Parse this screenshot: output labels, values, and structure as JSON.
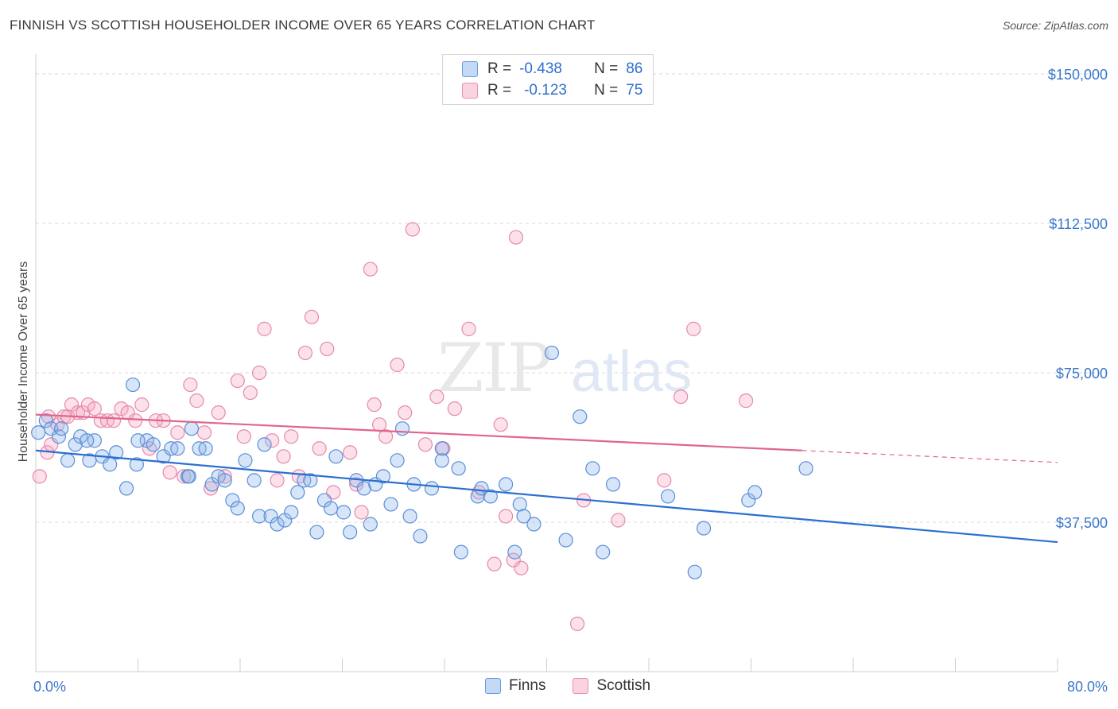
{
  "header": {
    "title": "FINNISH VS SCOTTISH HOUSEHOLDER INCOME OVER 65 YEARS CORRELATION CHART",
    "source": "Source: ZipAtlas.com"
  },
  "legend": {
    "rows": [
      {
        "r_label": "R =",
        "r_value": "-0.438",
        "n_label": "N =",
        "n_value": "86",
        "color": "#a9c8f0",
        "border": "#6a9be0"
      },
      {
        "r_label": "R =",
        "r_value": "-0.123",
        "n_label": "N =",
        "n_value": "75",
        "color": "#f7c3d4",
        "border": "#e890ad"
      }
    ]
  },
  "bottom_legend": {
    "finns": "Finns",
    "scottish": "Scottish"
  },
  "colors": {
    "finns_fill": "rgba(140,180,235,0.35)",
    "finns_stroke": "#5b8fd6",
    "finns_line": "#2a6fd1",
    "scottish_fill": "rgba(245,170,195,0.35)",
    "scottish_stroke": "#e58aab",
    "scottish_line": "#e0648e",
    "axis_text": "#3a78c9"
  },
  "chart_data": {
    "type": "scatter",
    "title": "FINNISH VS SCOTTISH HOUSEHOLDER INCOME OVER 65 YEARS CORRELATION CHART",
    "xlabel": "",
    "ylabel": "Householder Income Over 65 years",
    "xlim": [
      0,
      80
    ],
    "ylim": [
      0,
      153000
    ],
    "x_tick_labels": [
      "0.0%",
      "80.0%"
    ],
    "y_ticks": [
      37500,
      75000,
      112500,
      150000
    ],
    "y_tick_labels": [
      "$37,500",
      "$75,000",
      "$112,500",
      "$150,000"
    ],
    "grid": true,
    "legend_position": "top-center",
    "watermark": "ZIPatlas",
    "series": [
      {
        "name": "Finns",
        "r": -0.438,
        "n": 86,
        "trend": {
          "x": [
            0,
            80
          ],
          "y": [
            55500,
            32500
          ]
        },
        "points": [
          [
            0.2,
            60000
          ],
          [
            0.8,
            63000
          ],
          [
            1.2,
            61000
          ],
          [
            1.8,
            59000
          ],
          [
            2.5,
            53000
          ],
          [
            3.1,
            57000
          ],
          [
            3.5,
            59000
          ],
          [
            4.2,
            53000
          ],
          [
            4.6,
            58000
          ],
          [
            5.2,
            54000
          ],
          [
            5.8,
            52000
          ],
          [
            6.3,
            55000
          ],
          [
            7.1,
            46000
          ],
          [
            7.6,
            72000
          ],
          [
            7.9,
            52000
          ],
          [
            8.7,
            58000
          ],
          [
            9.2,
            57000
          ],
          [
            10.0,
            54000
          ],
          [
            10.6,
            56000
          ],
          [
            11.1,
            56000
          ],
          [
            11.9,
            49000
          ],
          [
            12.2,
            61000
          ],
          [
            12.8,
            56000
          ],
          [
            13.3,
            56000
          ],
          [
            13.8,
            47000
          ],
          [
            14.3,
            49000
          ],
          [
            14.8,
            48000
          ],
          [
            15.4,
            43000
          ],
          [
            15.8,
            41000
          ],
          [
            16.4,
            53000
          ],
          [
            17.1,
            48000
          ],
          [
            17.5,
            39000
          ],
          [
            17.9,
            57000
          ],
          [
            18.4,
            39000
          ],
          [
            18.9,
            37000
          ],
          [
            19.5,
            38000
          ],
          [
            20.0,
            40000
          ],
          [
            20.5,
            45000
          ],
          [
            21.0,
            48000
          ],
          [
            21.5,
            48000
          ],
          [
            22.0,
            35000
          ],
          [
            22.6,
            43000
          ],
          [
            23.1,
            41000
          ],
          [
            23.5,
            54000
          ],
          [
            24.1,
            40000
          ],
          [
            24.6,
            35000
          ],
          [
            25.1,
            48000
          ],
          [
            25.7,
            46000
          ],
          [
            26.2,
            37000
          ],
          [
            26.6,
            47000
          ],
          [
            27.2,
            49000
          ],
          [
            27.8,
            42000
          ],
          [
            28.3,
            53000
          ],
          [
            28.7,
            61000
          ],
          [
            29.3,
            39000
          ],
          [
            29.6,
            47000
          ],
          [
            30.1,
            34000
          ],
          [
            31.0,
            46000
          ],
          [
            31.8,
            56000
          ],
          [
            31.8,
            53000
          ],
          [
            33.1,
            51000
          ],
          [
            33.3,
            30000
          ],
          [
            34.6,
            44000
          ],
          [
            34.9,
            46000
          ],
          [
            35.6,
            44000
          ],
          [
            36.8,
            47000
          ],
          [
            37.5,
            30000
          ],
          [
            37.9,
            42000
          ],
          [
            38.2,
            39000
          ],
          [
            39.0,
            37000
          ],
          [
            40.4,
            80000
          ],
          [
            41.5,
            33000
          ],
          [
            42.6,
            64000
          ],
          [
            43.6,
            51000
          ],
          [
            44.4,
            30000
          ],
          [
            45.2,
            47000
          ],
          [
            49.5,
            44000
          ],
          [
            51.6,
            25000
          ],
          [
            52.3,
            36000
          ],
          [
            55.8,
            43000
          ],
          [
            56.3,
            45000
          ],
          [
            60.3,
            51000
          ],
          [
            8.0,
            58000
          ],
          [
            2.0,
            61000
          ],
          [
            4.0,
            58000
          ],
          [
            12.0,
            49000
          ]
        ]
      },
      {
        "name": "Scottish",
        "r": -0.123,
        "n": 75,
        "trend": {
          "x": [
            0,
            60
          ],
          "y": [
            64500,
            55500
          ]
        },
        "trend_dashed_extension": {
          "x": [
            60,
            80
          ],
          "y": [
            55500,
            52500
          ]
        },
        "points": [
          [
            0.3,
            49000
          ],
          [
            0.9,
            55000
          ],
          [
            1.2,
            57000
          ],
          [
            1.7,
            62000
          ],
          [
            2.2,
            64000
          ],
          [
            2.5,
            64000
          ],
          [
            2.8,
            67000
          ],
          [
            3.3,
            65000
          ],
          [
            3.7,
            65000
          ],
          [
            4.1,
            67000
          ],
          [
            4.6,
            66000
          ],
          [
            5.1,
            63000
          ],
          [
            5.6,
            63000
          ],
          [
            6.1,
            63000
          ],
          [
            6.7,
            66000
          ],
          [
            7.2,
            65000
          ],
          [
            7.8,
            63000
          ],
          [
            8.3,
            67000
          ],
          [
            8.9,
            56000
          ],
          [
            9.4,
            63000
          ],
          [
            10.0,
            63000
          ],
          [
            10.5,
            50000
          ],
          [
            11.1,
            60000
          ],
          [
            11.6,
            49000
          ],
          [
            12.1,
            72000
          ],
          [
            12.6,
            68000
          ],
          [
            13.2,
            60000
          ],
          [
            13.7,
            46000
          ],
          [
            14.3,
            65000
          ],
          [
            14.8,
            49000
          ],
          [
            15.8,
            73000
          ],
          [
            16.3,
            59000
          ],
          [
            16.8,
            70000
          ],
          [
            17.5,
            75000
          ],
          [
            17.9,
            86000
          ],
          [
            18.5,
            58000
          ],
          [
            18.9,
            48000
          ],
          [
            19.4,
            54000
          ],
          [
            20.0,
            59000
          ],
          [
            20.6,
            49000
          ],
          [
            21.1,
            80000
          ],
          [
            21.6,
            89000
          ],
          [
            22.2,
            56000
          ],
          [
            22.8,
            81000
          ],
          [
            23.3,
            45000
          ],
          [
            24.6,
            55000
          ],
          [
            25.1,
            47000
          ],
          [
            25.5,
            40000
          ],
          [
            26.2,
            101000
          ],
          [
            26.5,
            67000
          ],
          [
            26.9,
            62000
          ],
          [
            27.4,
            59000
          ],
          [
            28.3,
            77000
          ],
          [
            28.9,
            65000
          ],
          [
            29.5,
            111000
          ],
          [
            30.5,
            57000
          ],
          [
            31.4,
            69000
          ],
          [
            31.9,
            56000
          ],
          [
            32.8,
            66000
          ],
          [
            33.9,
            86000
          ],
          [
            34.7,
            45000
          ],
          [
            35.9,
            27000
          ],
          [
            36.4,
            62000
          ],
          [
            36.8,
            39000
          ],
          [
            37.4,
            28000
          ],
          [
            37.6,
            109000
          ],
          [
            38.0,
            26000
          ],
          [
            42.4,
            12000
          ],
          [
            42.9,
            43000
          ],
          [
            45.6,
            38000
          ],
          [
            49.2,
            48000
          ],
          [
            50.5,
            69000
          ],
          [
            51.5,
            86000
          ],
          [
            55.6,
            68000
          ],
          [
            1.0,
            64000
          ]
        ]
      }
    ]
  }
}
